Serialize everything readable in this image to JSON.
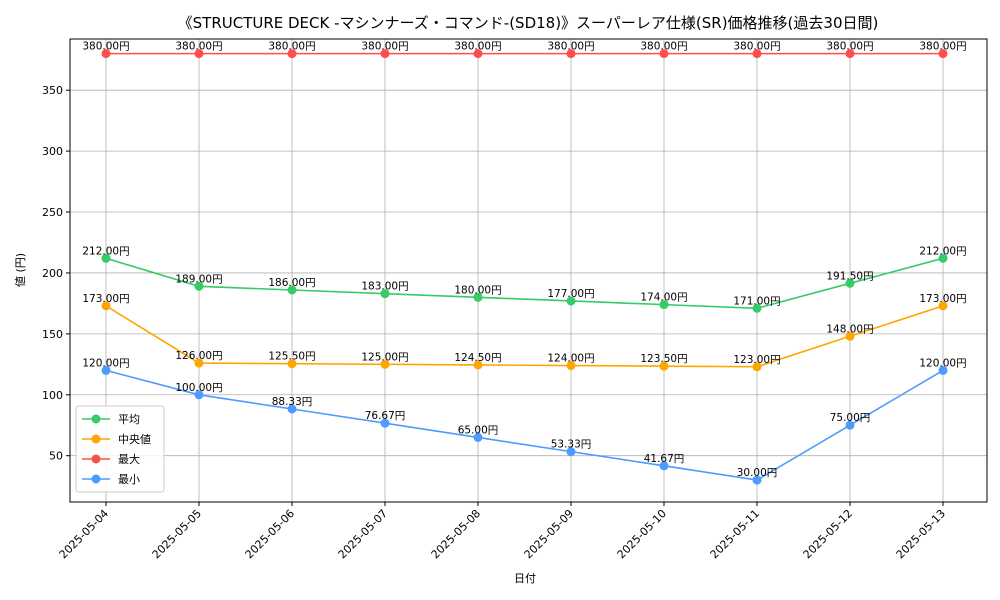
{
  "chart_data": {
    "type": "line",
    "title": "《STRUCTURE DECK -マシンナーズ・コマンド-(SD18)》スーパーレア仕様(SR)価格推移(過去30日間)",
    "xlabel": "日付",
    "ylabel": "値 (円)",
    "categories": [
      "2025-05-04",
      "2025-05-05",
      "2025-05-06",
      "2025-05-07",
      "2025-05-08",
      "2025-05-09",
      "2025-05-10",
      "2025-05-11",
      "2025-05-12",
      "2025-05-13"
    ],
    "yticks": [
      "50",
      "100",
      "150",
      "200",
      "250",
      "300",
      "350"
    ],
    "ylim": [
      12,
      392
    ],
    "grid": true,
    "legend_position": "lower-left",
    "series": [
      {
        "name": "平均",
        "color": "#33cc66",
        "values": [
          212.0,
          189.0,
          186.0,
          183.0,
          180.0,
          177.0,
          174.0,
          171.0,
          191.5,
          212.0
        ],
        "labels": [
          "212.00円",
          "189.00円",
          "186.00円",
          "183.00円",
          "180.00円",
          "177.00円",
          "174.00円",
          "171.00円",
          "191.50円",
          "212.00円"
        ]
      },
      {
        "name": "中央値",
        "color": "#ffa500",
        "values": [
          173.0,
          126.0,
          125.5,
          125.0,
          124.5,
          124.0,
          123.5,
          123.0,
          148.0,
          173.0
        ],
        "labels": [
          "173.00円",
          "126.00円",
          "125.50円",
          "125.00円",
          "124.50円",
          "124.00円",
          "123.50円",
          "123.00円",
          "148.00円",
          "173.00円"
        ]
      },
      {
        "name": "最大",
        "color": "#ff4d4d",
        "values": [
          380.0,
          380.0,
          380.0,
          380.0,
          380.0,
          380.0,
          380.0,
          380.0,
          380.0,
          380.0
        ],
        "labels": [
          "380.00円",
          "380.00円",
          "380.00円",
          "380.00円",
          "380.00円",
          "380.00円",
          "380.00円",
          "380.00円",
          "380.00円",
          "380.00円"
        ]
      },
      {
        "name": "最小",
        "color": "#4d9bff",
        "values": [
          120.0,
          100.0,
          88.33,
          76.67,
          65.0,
          53.33,
          41.67,
          30.0,
          75.0,
          120.0
        ],
        "labels": [
          "120.00円",
          "100.00円",
          "88.33円",
          "76.67円",
          "65.00円",
          "53.33円",
          "41.67円",
          "30.00円",
          "75.00円",
          "120.00円"
        ]
      }
    ]
  }
}
